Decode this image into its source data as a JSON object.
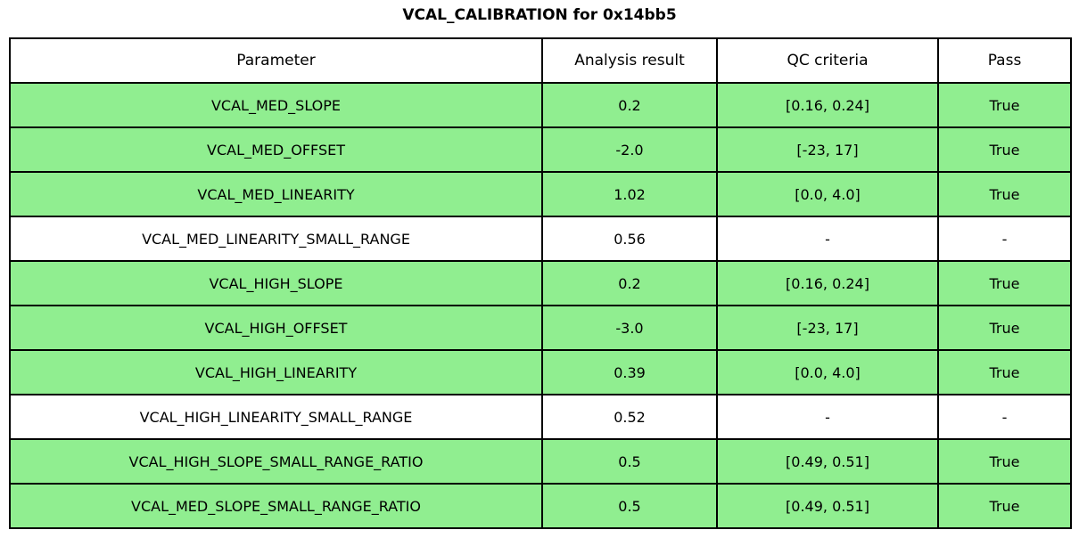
{
  "title": "VCAL_CALIBRATION for 0x14bb5",
  "colors": {
    "pass_row_bg": "#90ee90",
    "neutral_row_bg": "#ffffff",
    "border": "#000000",
    "text": "#000000"
  },
  "chart_data": {
    "type": "table",
    "title": "VCAL_CALIBRATION for 0x14bb5",
    "columns": [
      "Parameter",
      "Analysis result",
      "QC criteria",
      "Pass"
    ],
    "rows": [
      {
        "parameter": "VCAL_MED_SLOPE",
        "result": "0.2",
        "criteria": "[0.16, 0.24]",
        "pass": "True",
        "highlighted": true
      },
      {
        "parameter": "VCAL_MED_OFFSET",
        "result": "-2.0",
        "criteria": "[-23, 17]",
        "pass": "True",
        "highlighted": true
      },
      {
        "parameter": "VCAL_MED_LINEARITY",
        "result": "1.02",
        "criteria": "[0.0, 4.0]",
        "pass": "True",
        "highlighted": true
      },
      {
        "parameter": "VCAL_MED_LINEARITY_SMALL_RANGE",
        "result": "0.56",
        "criteria": "-",
        "pass": "-",
        "highlighted": false
      },
      {
        "parameter": "VCAL_HIGH_SLOPE",
        "result": "0.2",
        "criteria": "[0.16, 0.24]",
        "pass": "True",
        "highlighted": true
      },
      {
        "parameter": "VCAL_HIGH_OFFSET",
        "result": "-3.0",
        "criteria": "[-23, 17]",
        "pass": "True",
        "highlighted": true
      },
      {
        "parameter": "VCAL_HIGH_LINEARITY",
        "result": "0.39",
        "criteria": "[0.0, 4.0]",
        "pass": "True",
        "highlighted": true
      },
      {
        "parameter": "VCAL_HIGH_LINEARITY_SMALL_RANGE",
        "result": "0.52",
        "criteria": "-",
        "pass": "-",
        "highlighted": false
      },
      {
        "parameter": "VCAL_HIGH_SLOPE_SMALL_RANGE_RATIO",
        "result": "0.5",
        "criteria": "[0.49, 0.51]",
        "pass": "True",
        "highlighted": true
      },
      {
        "parameter": "VCAL_MED_SLOPE_SMALL_RANGE_RATIO",
        "result": "0.5",
        "criteria": "[0.49, 0.51]",
        "pass": "True",
        "highlighted": true
      }
    ],
    "layout": {
      "highlight_meaning": "row passes QC criteria",
      "grid": "all-borders",
      "legend": "none"
    }
  }
}
